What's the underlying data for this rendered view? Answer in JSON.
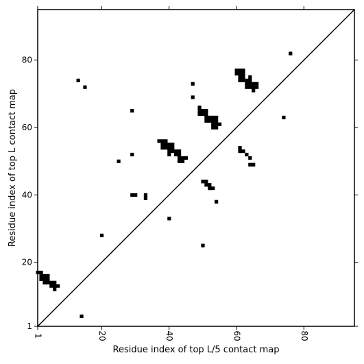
{
  "chart_data": {
    "type": "scatter",
    "marker": "square",
    "xlabel": "Residue index of top L/5 contact map",
    "ylabel": "Residue index of top L contact map",
    "xlim": [
      1,
      95
    ],
    "ylim": [
      1,
      95
    ],
    "xticks": [
      1,
      20,
      40,
      60,
      80
    ],
    "yticks": [
      1,
      20,
      40,
      60,
      80
    ],
    "diagonal": true,
    "grid": false,
    "colors": {
      "points": "#000000",
      "diagonal": "#000000",
      "axes": "#000000"
    },
    "points": [
      [
        13,
        74
      ],
      [
        15,
        72
      ],
      [
        29,
        65
      ],
      [
        47,
        73
      ],
      [
        47,
        69
      ],
      [
        76,
        82
      ],
      [
        74,
        63
      ],
      [
        25,
        50
      ],
      [
        29,
        52
      ],
      [
        20,
        28
      ],
      [
        29,
        40
      ],
      [
        30,
        40
      ],
      [
        33,
        40
      ],
      [
        33,
        39
      ],
      [
        40,
        33
      ],
      [
        14,
        4
      ],
      [
        50,
        25
      ],
      [
        54,
        38
      ],
      [
        1,
        17
      ],
      [
        2,
        17
      ],
      [
        2,
        16
      ],
      [
        3,
        16
      ],
      [
        4,
        16
      ],
      [
        2,
        15
      ],
      [
        3,
        15
      ],
      [
        4,
        15
      ],
      [
        3,
        14
      ],
      [
        4,
        14
      ],
      [
        5,
        14
      ],
      [
        6,
        14
      ],
      [
        5,
        13
      ],
      [
        6,
        13
      ],
      [
        7,
        13
      ],
      [
        6,
        12
      ],
      [
        37,
        56
      ],
      [
        38,
        56
      ],
      [
        39,
        56
      ],
      [
        38,
        55
      ],
      [
        39,
        55
      ],
      [
        40,
        55
      ],
      [
        41,
        55
      ],
      [
        38,
        54
      ],
      [
        39,
        54
      ],
      [
        40,
        54
      ],
      [
        41,
        54
      ],
      [
        40,
        53
      ],
      [
        41,
        53
      ],
      [
        42,
        53
      ],
      [
        43,
        53
      ],
      [
        40,
        52
      ],
      [
        42,
        52
      ],
      [
        43,
        52
      ],
      [
        43,
        51
      ],
      [
        44,
        51
      ],
      [
        45,
        51
      ],
      [
        43,
        50
      ],
      [
        44,
        50
      ],
      [
        49,
        66
      ],
      [
        49,
        65
      ],
      [
        50,
        65
      ],
      [
        51,
        65
      ],
      [
        49,
        64
      ],
      [
        50,
        64
      ],
      [
        51,
        64
      ],
      [
        51,
        63
      ],
      [
        52,
        63
      ],
      [
        53,
        63
      ],
      [
        54,
        63
      ],
      [
        51,
        62
      ],
      [
        52,
        62
      ],
      [
        53,
        62
      ],
      [
        54,
        62
      ],
      [
        53,
        61
      ],
      [
        54,
        61
      ],
      [
        55,
        61
      ],
      [
        53,
        60
      ],
      [
        54,
        60
      ],
      [
        50,
        44
      ],
      [
        51,
        44
      ],
      [
        51,
        43
      ],
      [
        52,
        43
      ],
      [
        52,
        42
      ],
      [
        53,
        42
      ],
      [
        60,
        77
      ],
      [
        61,
        77
      ],
      [
        62,
        77
      ],
      [
        60,
        76
      ],
      [
        61,
        76
      ],
      [
        62,
        76
      ],
      [
        61,
        75
      ],
      [
        62,
        75
      ],
      [
        61,
        74
      ],
      [
        62,
        74
      ],
      [
        64,
        75
      ],
      [
        63,
        74
      ],
      [
        64,
        74
      ],
      [
        63,
        73
      ],
      [
        64,
        73
      ],
      [
        65,
        73
      ],
      [
        66,
        73
      ],
      [
        63,
        72
      ],
      [
        64,
        72
      ],
      [
        65,
        72
      ],
      [
        66,
        72
      ],
      [
        65,
        71
      ],
      [
        61,
        54
      ],
      [
        61,
        53
      ],
      [
        62,
        53
      ],
      [
        63,
        52
      ],
      [
        64,
        51
      ],
      [
        64,
        49
      ],
      [
        65,
        49
      ]
    ]
  }
}
